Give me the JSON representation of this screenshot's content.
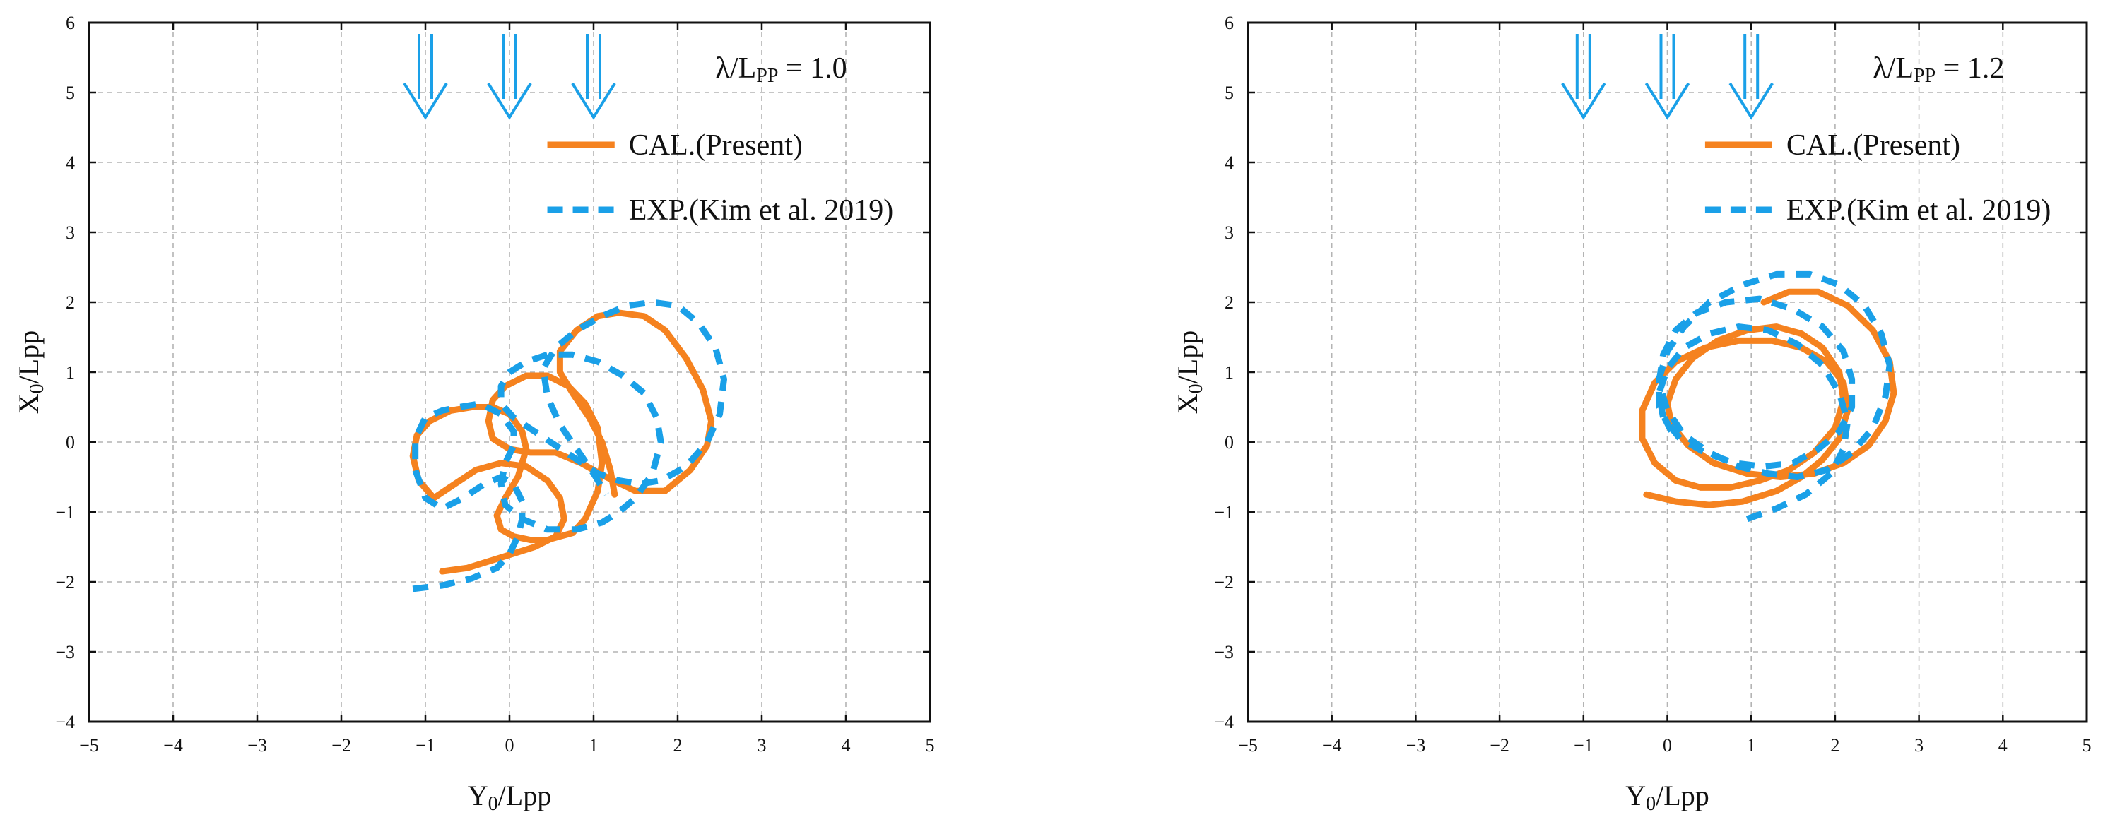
{
  "chart_data": [
    {
      "type": "line",
      "title": "",
      "xlabel": "Y_0/Lpp",
      "ylabel": "X_0/Lpp",
      "xlim": [
        -5,
        5
      ],
      "ylim": [
        -4,
        6
      ],
      "grid": true,
      "xticks": [
        -5,
        -4,
        -3,
        -2,
        -1,
        0,
        1,
        2,
        3,
        4,
        5
      ],
      "yticks": [
        -4,
        -3,
        -2,
        -1,
        0,
        1,
        2,
        3,
        4,
        5,
        6
      ],
      "xtick_labels": [
        "−5",
        "−4",
        "−3",
        "−2",
        "−1",
        "0",
        "1",
        "2",
        "3",
        "4",
        "5"
      ],
      "ytick_labels": [
        "−4",
        "−3",
        "−2",
        "−1",
        "0",
        "1",
        "2",
        "3",
        "4",
        "5",
        "6"
      ],
      "ratio_label": {
        "prefix": "λ/L",
        "sub": "PP",
        "suffix": " = 1.0"
      },
      "wave_arrows_y": [
        -1,
        0,
        1
      ],
      "legend": [
        {
          "label": "CAL.(Present)",
          "style": "solid",
          "color": "#F5821F"
        },
        {
          "label": "EXP.(Kim et al. 2019)",
          "style": "dashed",
          "color": "#1AA0E8"
        }
      ],
      "series": [
        {
          "name": "CAL.(Present)",
          "color": "#F5821F",
          "style": "solid",
          "x": [
            -0.8,
            -0.5,
            -0.1,
            0.3,
            0.55,
            0.65,
            0.6,
            0.45,
            0.2,
            -0.1,
            -0.4,
            -0.65,
            -0.9,
            -1.08,
            -1.15,
            -1.1,
            -0.95,
            -0.7,
            -0.45,
            -0.2,
            0,
            0.15,
            0.2,
            0.1,
            -0.05,
            -0.15,
            -0.1,
            0.05,
            0.25,
            0.45,
            0.6,
            0.75,
            0.9,
            1.05,
            1.1,
            1.05,
            0.9,
            0.7,
            0.45,
            0.2,
            -0.05,
            -0.2,
            -0.25,
            -0.2,
            0,
            0.25,
            0.55,
            0.85,
            1.15,
            1.5,
            1.85,
            2.15,
            2.35,
            2.4,
            2.3,
            2.1,
            1.85,
            1.6,
            1.3,
            1.05,
            0.8,
            0.6,
            0.6,
            0.75,
            0.95,
            1.1,
            1.2,
            1.25
          ],
          "y": [
            -1.85,
            -1.8,
            -1.65,
            -1.5,
            -1.35,
            -1.1,
            -0.8,
            -0.55,
            -0.35,
            -0.3,
            -0.4,
            -0.6,
            -0.8,
            -0.55,
            -0.2,
            0.1,
            0.3,
            0.45,
            0.5,
            0.5,
            0.4,
            0.15,
            -0.1,
            -0.5,
            -0.8,
            -1.05,
            -1.25,
            -1.35,
            -1.4,
            -1.4,
            -1.35,
            -1.3,
            -1.1,
            -0.7,
            -0.3,
            0.2,
            0.55,
            0.8,
            0.95,
            0.95,
            0.8,
            0.6,
            0.3,
            0.05,
            -0.1,
            -0.15,
            -0.15,
            -0.3,
            -0.5,
            -0.7,
            -0.7,
            -0.4,
            -0.05,
            0.3,
            0.75,
            1.2,
            1.6,
            1.8,
            1.85,
            1.8,
            1.6,
            1.3,
            1.0,
            0.7,
            0.35,
            0,
            -0.4,
            -0.75
          ]
        },
        {
          "name": "EXP.(Kim et al. 2019)",
          "color": "#1AA0E8",
          "style": "dashed",
          "x": [
            -1.15,
            -0.8,
            -0.45,
            -0.15,
            0,
            0.1,
            0.15,
            0.15,
            0.05,
            -0.1,
            -0.3,
            -0.55,
            -0.8,
            -1.0,
            -1.12,
            -1.12,
            -1.0,
            -0.8,
            -0.6,
            -0.35,
            -0.1,
            0.05,
            0.05,
            -0.05,
            -0.1,
            -0.05,
            0.15,
            0.45,
            0.8,
            1.1,
            1.3,
            1.5,
            1.7,
            1.8,
            1.75,
            1.6,
            1.35,
            1.05,
            0.75,
            0.45,
            0.2,
            0,
            -0.1,
            -0.1,
            0.05,
            0.3,
            0.55,
            0.8,
            1.05,
            1.3,
            1.55,
            1.8,
            2.1,
            2.35,
            2.5,
            2.55,
            2.45,
            2.25,
            2.0,
            1.7,
            1.4,
            1.1,
            0.8,
            0.55,
            0.4,
            0.45,
            0.6,
            0.8,
            1.0,
            1.15
          ],
          "y": [
            -2.1,
            -2.05,
            -1.95,
            -1.8,
            -1.6,
            -1.35,
            -1.1,
            -0.85,
            -0.6,
            -0.5,
            -0.6,
            -0.8,
            -0.95,
            -0.8,
            -0.4,
            0.05,
            0.35,
            0.45,
            0.5,
            0.55,
            0.4,
            0.15,
            -0.05,
            -0.3,
            -0.6,
            -0.9,
            -1.1,
            -1.25,
            -1.25,
            -1.15,
            -1.0,
            -0.8,
            -0.45,
            0,
            0.35,
            0.7,
            0.95,
            1.15,
            1.25,
            1.25,
            1.15,
            1.0,
            0.8,
            0.55,
            0.35,
            0.15,
            -0.05,
            -0.25,
            -0.45,
            -0.55,
            -0.6,
            -0.55,
            -0.35,
            0,
            0.4,
            0.9,
            1.35,
            1.7,
            1.95,
            2.0,
            1.95,
            1.8,
            1.6,
            1.35,
            1.05,
            0.65,
            0.25,
            -0.1,
            -0.45,
            -0.75
          ]
        }
      ]
    },
    {
      "type": "line",
      "title": "",
      "xlabel": "Y_0/Lpp",
      "ylabel": "X_0/Lpp",
      "xlim": [
        -5,
        5
      ],
      "ylim": [
        -4,
        6
      ],
      "grid": true,
      "xticks": [
        -5,
        -4,
        -3,
        -2,
        -1,
        0,
        1,
        2,
        3,
        4,
        5
      ],
      "yticks": [
        -4,
        -3,
        -2,
        -1,
        0,
        1,
        2,
        3,
        4,
        5,
        6
      ],
      "xtick_labels": [
        "−5",
        "−4",
        "−3",
        "−2",
        "−1",
        "0",
        "1",
        "2",
        "3",
        "4",
        "5"
      ],
      "ytick_labels": [
        "−4",
        "−3",
        "−2",
        "−1",
        "0",
        "1",
        "2",
        "3",
        "4",
        "5",
        "6"
      ],
      "ratio_label": {
        "prefix": "λ/L",
        "sub": "PP",
        "suffix": " = 1.2"
      },
      "wave_arrows_y": [
        -1,
        0,
        1
      ],
      "legend": [
        {
          "label": "CAL.(Present)",
          "style": "solid",
          "color": "#F5821F"
        },
        {
          "label": "EXP.(Kim et al. 2019)",
          "style": "dashed",
          "color": "#1AA0E8"
        }
      ],
      "series": [
        {
          "name": "CAL.(Present)",
          "color": "#F5821F",
          "style": "solid",
          "x": [
            -0.25,
            0.1,
            0.5,
            0.9,
            1.3,
            1.6,
            1.85,
            2.05,
            2.15,
            2.1,
            1.9,
            1.6,
            1.25,
            0.85,
            0.45,
            0.1,
            -0.15,
            -0.3,
            -0.3,
            -0.15,
            0.1,
            0.4,
            0.75,
            1.1,
            1.45,
            1.75,
            2.0,
            2.1,
            2.05,
            1.85,
            1.6,
            1.3,
            0.95,
            0.6,
            0.3,
            0.1,
            0,
            0.05,
            0.25,
            0.55,
            0.95,
            1.35,
            1.75,
            2.1,
            2.4,
            2.6,
            2.7,
            2.65,
            2.45,
            2.15,
            1.8,
            1.45,
            1.15
          ],
          "y": [
            -0.75,
            -0.85,
            -0.9,
            -0.85,
            -0.7,
            -0.5,
            -0.25,
            0.05,
            0.45,
            0.85,
            1.15,
            1.35,
            1.45,
            1.45,
            1.35,
            1.15,
            0.85,
            0.45,
            0.05,
            -0.3,
            -0.55,
            -0.65,
            -0.65,
            -0.55,
            -0.4,
            -0.15,
            0.2,
            0.6,
            1.0,
            1.35,
            1.55,
            1.65,
            1.6,
            1.45,
            1.2,
            0.9,
            0.55,
            0.25,
            -0.05,
            -0.3,
            -0.45,
            -0.5,
            -0.45,
            -0.3,
            -0.05,
            0.3,
            0.7,
            1.15,
            1.6,
            1.95,
            2.15,
            2.15,
            2.0
          ]
        },
        {
          "name": "EXP.(Kim et al. 2019)",
          "color": "#1AA0E8",
          "style": "dashed",
          "x": [
            0.95,
            1.3,
            1.65,
            1.95,
            2.1,
            2.15,
            2.05,
            1.85,
            1.55,
            1.2,
            0.85,
            0.5,
            0.2,
            0,
            -0.1,
            -0.05,
            0.15,
            0.45,
            0.8,
            1.15,
            1.5,
            1.8,
            2.05,
            2.2,
            2.2,
            2.1,
            1.85,
            1.5,
            1.1,
            0.7,
            0.35,
            0.1,
            -0.05,
            -0.1,
            0,
            0.2,
            0.5,
            0.85,
            1.2,
            1.55,
            1.9,
            2.2,
            2.45,
            2.6,
            2.65,
            2.55,
            2.35,
            2.05,
            1.7,
            1.3,
            0.9,
            0.5,
            0.2,
            0,
            -0.1,
            -0.1,
            0.05
          ],
          "y": [
            -1.1,
            -0.95,
            -0.75,
            -0.45,
            -0.1,
            0.3,
            0.7,
            1.1,
            1.4,
            1.6,
            1.65,
            1.55,
            1.35,
            1.05,
            0.7,
            0.35,
            0.05,
            -0.15,
            -0.3,
            -0.35,
            -0.3,
            -0.1,
            0.15,
            0.5,
            0.9,
            1.3,
            1.65,
            1.9,
            2.05,
            2.0,
            1.85,
            1.6,
            1.25,
            0.85,
            0.45,
            0.1,
            -0.15,
            -0.35,
            -0.45,
            -0.5,
            -0.4,
            -0.15,
            0.2,
            0.65,
            1.1,
            1.55,
            1.95,
            2.25,
            2.4,
            2.4,
            2.25,
            2.0,
            1.65,
            1.3,
            0.9,
            0.5,
            0.15
          ]
        }
      ]
    }
  ]
}
